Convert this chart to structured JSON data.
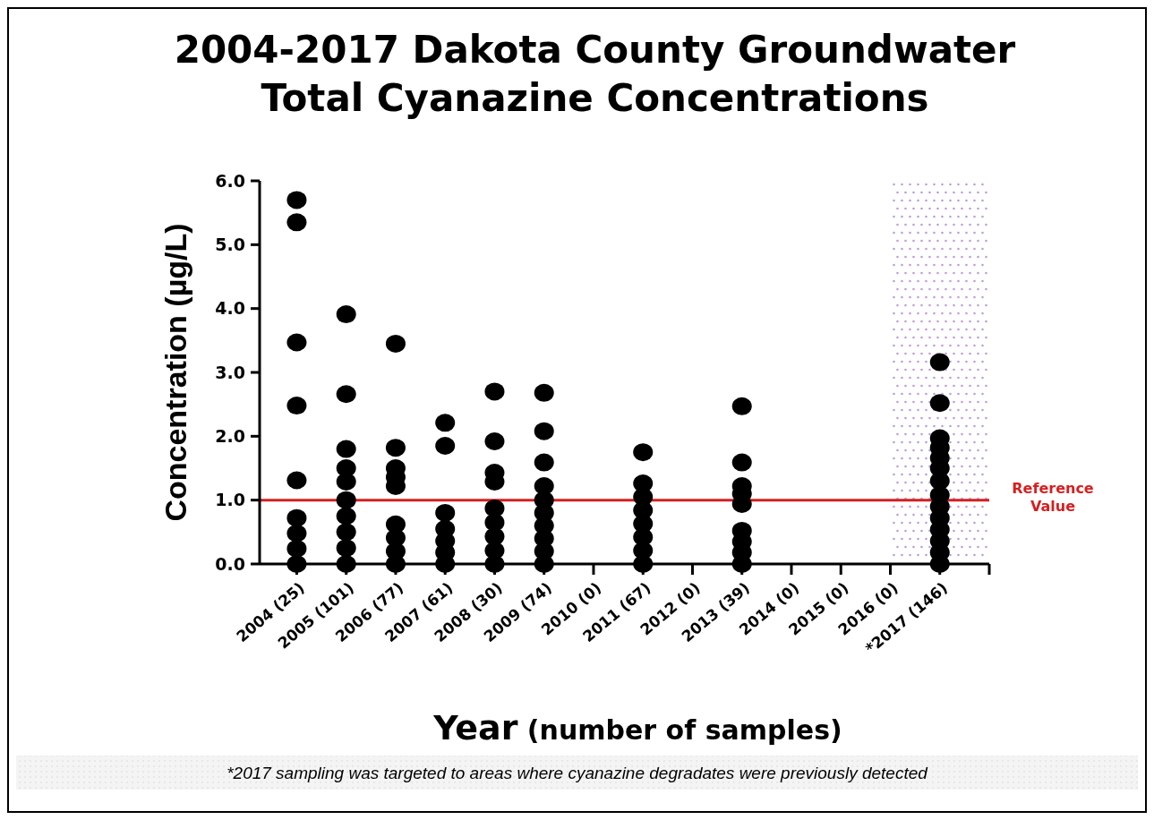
{
  "chart_data": {
    "type": "scatter",
    "title": "2004-2017 Dakota County Groundwater\nTotal Cyanazine Concentrations",
    "ylabel": "Concentration (µg/L)",
    "xlabel": "Year (number of samples)",
    "categories": [
      "2004 (25)",
      "2005 (101)",
      "2006 (77)",
      "2007 (61)",
      "2008 (30)",
      "2009 (74)",
      "2010 (0)",
      "2011 (67)",
      "2012 (0)",
      "2013 (39)",
      "2014 (0)",
      "2015 (0)",
      "2016 (0)",
      "*2017 (146)"
    ],
    "ylim": [
      0,
      6
    ],
    "yticks": [
      {
        "value": 0,
        "label": "0.0"
      },
      {
        "value": 1,
        "label": "1.0"
      },
      {
        "value": 2,
        "label": "2.0"
      },
      {
        "value": 3,
        "label": "3.0"
      },
      {
        "value": 4,
        "label": "4.0"
      },
      {
        "value": 5,
        "label": "5.0"
      },
      {
        "value": 6,
        "label": "6.0"
      }
    ],
    "marker": "circle",
    "series": [
      {
        "color": "#000000",
        "x": [
          "2004 (25)",
          "2004 (25)",
          "2004 (25)",
          "2004 (25)",
          "2004 (25)",
          "2004 (25)",
          "2004 (25)",
          "2004 (25)",
          "2004 (25)"
        ],
        "values": [
          5.7,
          5.35,
          3.47,
          2.48,
          1.31,
          0.72,
          0.48,
          0.24,
          0
        ]
      },
      {
        "color": "#000000",
        "x": [
          "2005 (101)",
          "2005 (101)",
          "2005 (101)",
          "2005 (101)",
          "2005 (101)",
          "2005 (101)",
          "2005 (101)",
          "2005 (101)",
          "2005 (101)",
          "2005 (101)"
        ],
        "values": [
          3.91,
          2.66,
          1.8,
          1.5,
          1.29,
          1.0,
          0.75,
          0.5,
          0.25,
          0
        ]
      },
      {
        "color": "#000000",
        "x": [
          "2006 (77)",
          "2006 (77)",
          "2006 (77)",
          "2006 (77)",
          "2006 (77)",
          "2006 (77)",
          "2006 (77)",
          "2006 (77)",
          "2006 (77)"
        ],
        "values": [
          3.45,
          1.82,
          1.5,
          1.36,
          1.22,
          0.62,
          0.41,
          0.2,
          0
        ]
      },
      {
        "color": "#000000",
        "x": [
          "2007 (61)",
          "2007 (61)",
          "2007 (61)",
          "2007 (61)",
          "2007 (61)",
          "2007 (61)",
          "2007 (61)"
        ],
        "values": [
          2.21,
          1.85,
          0.8,
          0.55,
          0.36,
          0.18,
          0
        ]
      },
      {
        "color": "#000000",
        "x": [
          "2008 (30)",
          "2008 (30)",
          "2008 (30)",
          "2008 (30)",
          "2008 (30)",
          "2008 (30)",
          "2008 (30)",
          "2008 (30)",
          "2008 (30)"
        ],
        "values": [
          2.7,
          1.92,
          1.43,
          1.29,
          0.87,
          0.65,
          0.43,
          0.21,
          0
        ]
      },
      {
        "color": "#000000",
        "x": [
          "2009 (74)",
          "2009 (74)",
          "2009 (74)",
          "2009 (74)",
          "2009 (74)",
          "2009 (74)",
          "2009 (74)",
          "2009 (74)",
          "2009 (74)",
          "2009 (74)"
        ],
        "values": [
          2.68,
          2.08,
          1.59,
          1.22,
          1.0,
          0.8,
          0.6,
          0.4,
          0.2,
          0
        ]
      },
      {
        "color": "#000000",
        "x": [
          "2011 (67)",
          "2011 (67)",
          "2011 (67)",
          "2011 (67)",
          "2011 (67)",
          "2011 (67)",
          "2011 (67)",
          "2011 (67)"
        ],
        "values": [
          1.75,
          1.26,
          1.05,
          0.84,
          0.63,
          0.42,
          0.21,
          0
        ]
      },
      {
        "color": "#000000",
        "x": [
          "2013 (39)",
          "2013 (39)",
          "2013 (39)",
          "2013 (39)",
          "2013 (39)",
          "2013 (39)",
          "2013 (39)",
          "2013 (39)",
          "2013 (39)"
        ],
        "values": [
          2.47,
          1.59,
          1.22,
          1.1,
          0.94,
          0.52,
          0.35,
          0.18,
          0
        ]
      },
      {
        "color": "#000000",
        "x": [
          "*2017 (146)",
          "*2017 (146)",
          "*2017 (146)",
          "*2017 (146)",
          "*2017 (146)",
          "*2017 (146)",
          "*2017 (146)",
          "*2017 (146)",
          "*2017 (146)",
          "*2017 (146)",
          "*2017 (146)",
          "*2017 (146)",
          "*2017 (146)",
          "*2017 (146)"
        ],
        "values": [
          3.16,
          2.52,
          1.97,
          1.82,
          1.66,
          1.5,
          1.3,
          1.08,
          0.9,
          0.72,
          0.54,
          0.36,
          0.18,
          0
        ]
      }
    ],
    "ref_lines": [
      {
        "axis": "y",
        "value": 1,
        "label": "Reference\nValue",
        "color": "#d42020"
      }
    ],
    "annotations": [
      "*2017 sampling was targeted to areas where cyanazine degradates were previously detected"
    ]
  }
}
